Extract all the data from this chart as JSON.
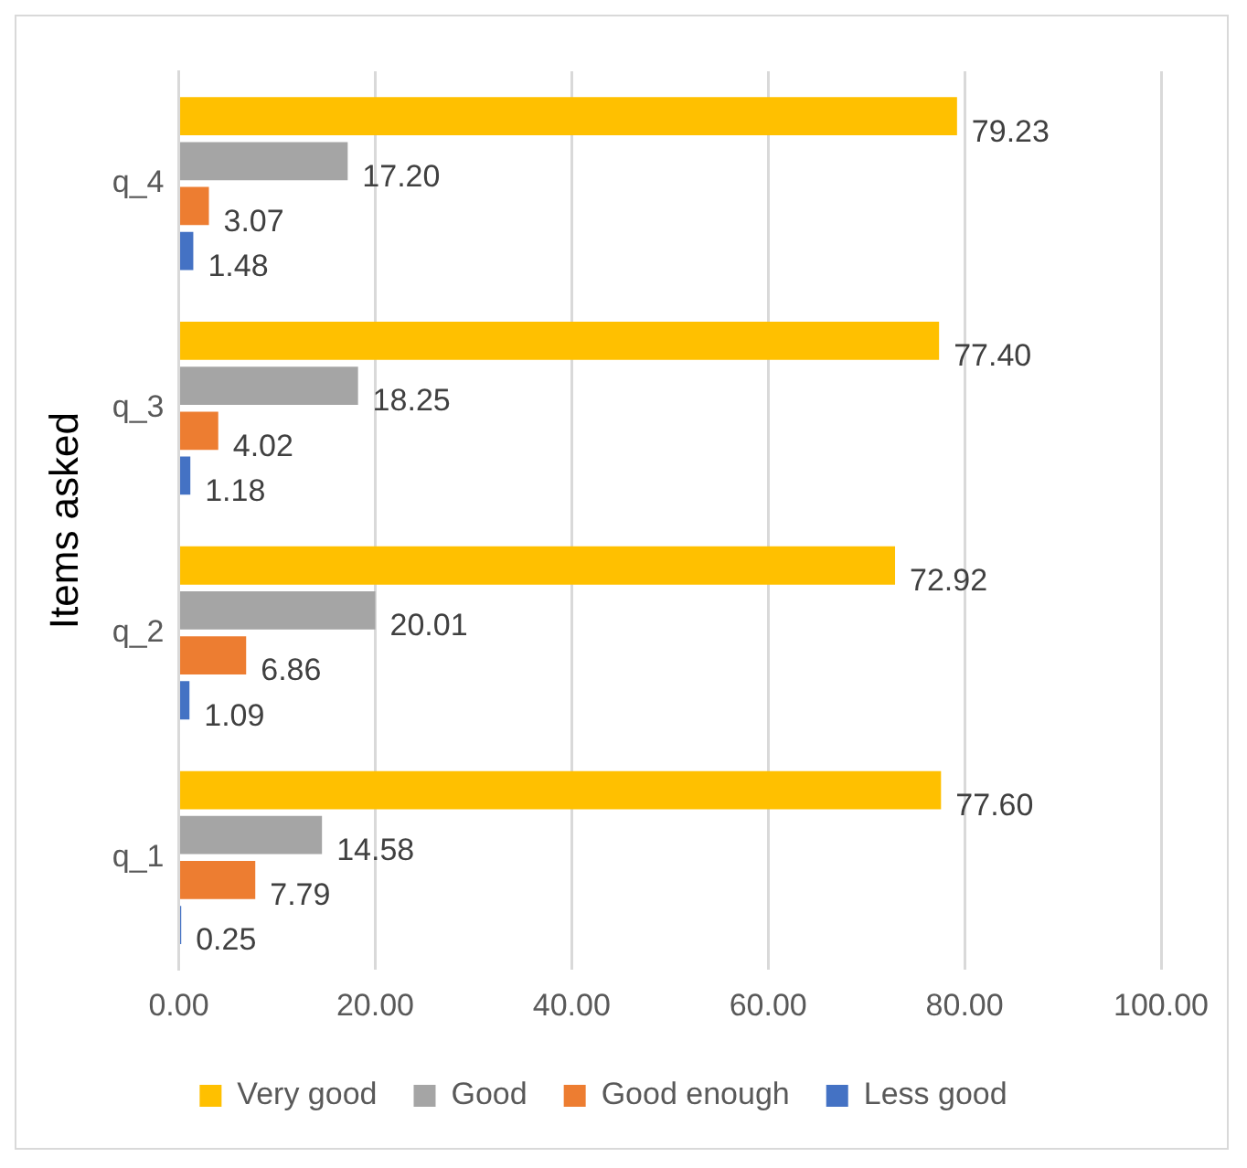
{
  "chart_data": {
    "type": "bar",
    "orientation": "horizontal",
    "ylabel": "Items asked",
    "categories": [
      "q_4",
      "q_3",
      "q_2",
      "q_1"
    ],
    "series": [
      {
        "name": "Very good",
        "color": "#ffc000",
        "values": [
          79.23,
          77.4,
          72.92,
          77.6
        ],
        "value_labels": [
          "79.23",
          "77.40",
          "72.92",
          "77.60"
        ]
      },
      {
        "name": "Good",
        "color": "#a5a5a5",
        "values": [
          17.2,
          18.25,
          20.01,
          14.58
        ],
        "value_labels": [
          "17.20",
          "18.25",
          "20.01",
          "14.58"
        ]
      },
      {
        "name": "Good enough",
        "color": "#ed7d31",
        "values": [
          3.07,
          4.02,
          6.86,
          7.79
        ],
        "value_labels": [
          "3.07",
          "4.02",
          "6.86",
          "7.79"
        ]
      },
      {
        "name": "Less good",
        "color": "#4472c4",
        "values": [
          1.48,
          1.18,
          1.09,
          0.25
        ],
        "value_labels": [
          "1.48",
          "1.18",
          "1.09",
          "0.25"
        ]
      }
    ],
    "xlim": [
      0,
      100
    ],
    "xticks": [
      {
        "value": 0,
        "label": "0.00"
      },
      {
        "value": 20,
        "label": "20.00"
      },
      {
        "value": 40,
        "label": "40.00"
      },
      {
        "value": 60,
        "label": "60.00"
      },
      {
        "value": 80,
        "label": "80.00"
      },
      {
        "value": 100,
        "label": "100.00"
      }
    ],
    "grid": "x",
    "legend": "bottom"
  }
}
